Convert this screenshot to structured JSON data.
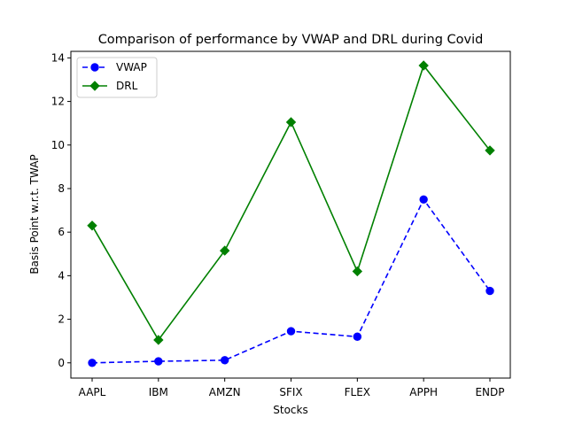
{
  "chart_data": {
    "type": "line",
    "title": "Comparison of performance by VWAP and DRL during Covid",
    "xlabel": "Stocks",
    "ylabel": "Basis Point w.r.t. TWAP",
    "categories": [
      "AAPL",
      "IBM",
      "AMZN",
      "SFIX",
      "FLEX",
      "APPH",
      "ENDP"
    ],
    "ylim": [
      -0.7,
      14.3
    ],
    "yticks": [
      0,
      2,
      4,
      6,
      8,
      10,
      12,
      14
    ],
    "grid": false,
    "legend_position": "upper-left",
    "series": [
      {
        "name": "VWAP",
        "values": [
          0.0,
          0.07,
          0.12,
          1.45,
          1.2,
          7.5,
          3.3
        ],
        "color": "#0000ff",
        "line_style": "dashed",
        "marker": "circle"
      },
      {
        "name": "DRL",
        "values": [
          6.3,
          1.05,
          5.15,
          11.05,
          4.2,
          13.65,
          9.75
        ],
        "color": "#008000",
        "line_style": "solid",
        "marker": "diamond"
      }
    ]
  }
}
